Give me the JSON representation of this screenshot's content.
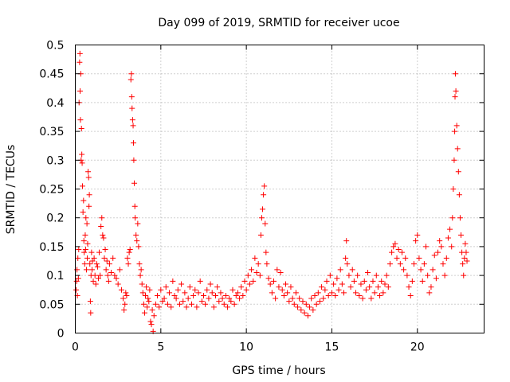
{
  "chart_data": {
    "type": "scatter",
    "title": "Day 099 of 2019, SRMTID for receiver ucoe",
    "xlabel": "GPS time / hours",
    "ylabel": "SRMTID / TECUs",
    "xlim": [
      0,
      23.9
    ],
    "ylim": [
      0,
      0.5
    ],
    "xticks": [
      0,
      5,
      10,
      15,
      20
    ],
    "xtick_labels": [
      "0",
      "5",
      "10",
      "15",
      "20"
    ],
    "yticks": [
      0,
      0.05,
      0.1,
      0.15,
      0.2,
      0.25,
      0.3,
      0.35,
      0.4,
      0.45,
      0.5
    ],
    "ytick_labels": [
      "0",
      "0.05",
      "0.1",
      "0.15",
      "0.2",
      "0.25",
      "0.3",
      "0.35",
      "0.4",
      "0.45",
      "0.5"
    ],
    "grid": true,
    "marker": "+",
    "color": "#ff0000",
    "series": [
      {
        "name": "SRMTID",
        "points": [
          [
            0.05,
            0.075
          ],
          [
            0.08,
            0.09
          ],
          [
            0.1,
            0.11
          ],
          [
            0.12,
            0.065
          ],
          [
            0.15,
            0.13
          ],
          [
            0.18,
            0.095
          ],
          [
            0.2,
            0.145
          ],
          [
            0.22,
            0.4
          ],
          [
            0.25,
            0.47
          ],
          [
            0.27,
            0.485
          ],
          [
            0.28,
            0.42
          ],
          [
            0.3,
            0.37
          ],
          [
            0.32,
            0.45
          ],
          [
            0.34,
            0.3
          ],
          [
            0.36,
            0.355
          ],
          [
            0.38,
            0.31
          ],
          [
            0.4,
            0.295
          ],
          [
            0.42,
            0.255
          ],
          [
            0.45,
            0.21
          ],
          [
            0.48,
            0.23
          ],
          [
            0.5,
            0.16
          ],
          [
            0.52,
            0.14
          ],
          [
            0.55,
            0.12
          ],
          [
            0.58,
            0.17
          ],
          [
            0.6,
            0.145
          ],
          [
            0.62,
            0.2
          ],
          [
            0.65,
            0.11
          ],
          [
            0.68,
            0.19
          ],
          [
            0.7,
            0.13
          ],
          [
            0.72,
            0.155
          ],
          [
            0.75,
            0.28
          ],
          [
            0.78,
            0.27
          ],
          [
            0.8,
            0.22
          ],
          [
            0.82,
            0.24
          ],
          [
            0.85,
            0.12
          ],
          [
            0.88,
            0.055
          ],
          [
            0.9,
            0.035
          ],
          [
            0.92,
            0.1
          ],
          [
            0.95,
            0.14
          ],
          [
            0.98,
            0.11
          ],
          [
            1.0,
            0.125
          ],
          [
            1.05,
            0.09
          ],
          [
            1.1,
            0.13
          ],
          [
            1.15,
            0.1
          ],
          [
            1.2,
            0.085
          ],
          [
            1.25,
            0.12
          ],
          [
            1.3,
            0.115
          ],
          [
            1.35,
            0.095
          ],
          [
            1.4,
            0.14
          ],
          [
            1.45,
            0.1
          ],
          [
            1.5,
            0.185
          ],
          [
            1.55,
            0.2
          ],
          [
            1.6,
            0.17
          ],
          [
            1.65,
            0.165
          ],
          [
            1.7,
            0.13
          ],
          [
            1.75,
            0.145
          ],
          [
            1.8,
            0.11
          ],
          [
            1.85,
            0.125
          ],
          [
            1.9,
            0.1
          ],
          [
            1.95,
            0.09
          ],
          [
            2.0,
            0.12
          ],
          [
            2.1,
            0.105
          ],
          [
            2.2,
            0.13
          ],
          [
            2.3,
            0.1
          ],
          [
            2.4,
            0.095
          ],
          [
            2.5,
            0.085
          ],
          [
            2.6,
            0.11
          ],
          [
            2.7,
            0.075
          ],
          [
            2.8,
            0.06
          ],
          [
            2.85,
            0.04
          ],
          [
            2.9,
            0.05
          ],
          [
            2.95,
            0.07
          ],
          [
            3.0,
            0.065
          ],
          [
            3.05,
            0.13
          ],
          [
            3.1,
            0.12
          ],
          [
            3.15,
            0.14
          ],
          [
            3.2,
            0.145
          ],
          [
            3.25,
            0.44
          ],
          [
            3.28,
            0.45
          ],
          [
            3.3,
            0.41
          ],
          [
            3.32,
            0.39
          ],
          [
            3.35,
            0.37
          ],
          [
            3.38,
            0.36
          ],
          [
            3.4,
            0.33
          ],
          [
            3.42,
            0.3
          ],
          [
            3.45,
            0.26
          ],
          [
            3.48,
            0.22
          ],
          [
            3.5,
            0.2
          ],
          [
            3.55,
            0.17
          ],
          [
            3.6,
            0.16
          ],
          [
            3.65,
            0.19
          ],
          [
            3.7,
            0.15
          ],
          [
            3.75,
            0.12
          ],
          [
            3.8,
            0.1
          ],
          [
            3.85,
            0.11
          ],
          [
            3.9,
            0.085
          ],
          [
            3.95,
            0.07
          ],
          [
            4.0,
            0.05
          ],
          [
            4.05,
            0.035
          ],
          [
            4.1,
            0.065
          ],
          [
            4.15,
            0.08
          ],
          [
            4.2,
            0.045
          ],
          [
            4.25,
            0.06
          ],
          [
            4.3,
            0.055
          ],
          [
            4.35,
            0.075
          ],
          [
            4.4,
            0.02
          ],
          [
            4.45,
            0.015
          ],
          [
            4.5,
            0.04
          ],
          [
            4.55,
            0.003
          ],
          [
            4.6,
            0.03
          ],
          [
            4.7,
            0.05
          ],
          [
            4.8,
            0.065
          ],
          [
            4.9,
            0.045
          ],
          [
            5.0,
            0.075
          ],
          [
            5.1,
            0.055
          ],
          [
            5.2,
            0.06
          ],
          [
            5.3,
            0.08
          ],
          [
            5.4,
            0.05
          ],
          [
            5.5,
            0.07
          ],
          [
            5.6,
            0.045
          ],
          [
            5.7,
            0.09
          ],
          [
            5.8,
            0.065
          ],
          [
            5.9,
            0.06
          ],
          [
            6.0,
            0.075
          ],
          [
            6.1,
            0.05
          ],
          [
            6.2,
            0.085
          ],
          [
            6.3,
            0.055
          ],
          [
            6.4,
            0.07
          ],
          [
            6.5,
            0.045
          ],
          [
            6.6,
            0.06
          ],
          [
            6.7,
            0.08
          ],
          [
            6.8,
            0.05
          ],
          [
            6.9,
            0.065
          ],
          [
            7.0,
            0.075
          ],
          [
            7.1,
            0.045
          ],
          [
            7.2,
            0.07
          ],
          [
            7.3,
            0.09
          ],
          [
            7.4,
            0.055
          ],
          [
            7.5,
            0.065
          ],
          [
            7.6,
            0.05
          ],
          [
            7.7,
            0.075
          ],
          [
            7.8,
            0.06
          ],
          [
            7.9,
            0.085
          ],
          [
            8.0,
            0.07
          ],
          [
            8.1,
            0.045
          ],
          [
            8.2,
            0.065
          ],
          [
            8.3,
            0.08
          ],
          [
            8.4,
            0.055
          ],
          [
            8.5,
            0.07
          ],
          [
            8.6,
            0.06
          ],
          [
            8.7,
            0.05
          ],
          [
            8.8,
            0.065
          ],
          [
            8.9,
            0.045
          ],
          [
            9.0,
            0.06
          ],
          [
            9.1,
            0.055
          ],
          [
            9.2,
            0.075
          ],
          [
            9.3,
            0.05
          ],
          [
            9.4,
            0.065
          ],
          [
            9.5,
            0.07
          ],
          [
            9.6,
            0.06
          ],
          [
            9.7,
            0.08
          ],
          [
            9.8,
            0.065
          ],
          [
            9.9,
            0.09
          ],
          [
            10.0,
            0.075
          ],
          [
            10.1,
            0.1
          ],
          [
            10.2,
            0.085
          ],
          [
            10.3,
            0.11
          ],
          [
            10.4,
            0.09
          ],
          [
            10.5,
            0.13
          ],
          [
            10.6,
            0.105
          ],
          [
            10.7,
            0.12
          ],
          [
            10.8,
            0.1
          ],
          [
            10.85,
            0.17
          ],
          [
            10.9,
            0.2
          ],
          [
            10.95,
            0.215
          ],
          [
            11.0,
            0.24
          ],
          [
            11.05,
            0.255
          ],
          [
            11.1,
            0.19
          ],
          [
            11.15,
            0.14
          ],
          [
            11.2,
            0.12
          ],
          [
            11.3,
            0.095
          ],
          [
            11.4,
            0.085
          ],
          [
            11.5,
            0.07
          ],
          [
            11.6,
            0.09
          ],
          [
            11.7,
            0.06
          ],
          [
            11.8,
            0.11
          ],
          [
            11.9,
            0.08
          ],
          [
            12.0,
            0.105
          ],
          [
            12.1,
            0.075
          ],
          [
            12.2,
            0.065
          ],
          [
            12.3,
            0.085
          ],
          [
            12.4,
            0.07
          ],
          [
            12.5,
            0.055
          ],
          [
            12.6,
            0.08
          ],
          [
            12.7,
            0.06
          ],
          [
            12.8,
            0.05
          ],
          [
            12.9,
            0.07
          ],
          [
            13.0,
            0.045
          ],
          [
            13.1,
            0.06
          ],
          [
            13.2,
            0.04
          ],
          [
            13.3,
            0.055
          ],
          [
            13.4,
            0.035
          ],
          [
            13.5,
            0.05
          ],
          [
            13.6,
            0.03
          ],
          [
            13.7,
            0.045
          ],
          [
            13.8,
            0.06
          ],
          [
            13.9,
            0.04
          ],
          [
            14.0,
            0.065
          ],
          [
            14.1,
            0.05
          ],
          [
            14.2,
            0.07
          ],
          [
            14.3,
            0.055
          ],
          [
            14.4,
            0.08
          ],
          [
            14.5,
            0.06
          ],
          [
            14.6,
            0.075
          ],
          [
            14.7,
            0.09
          ],
          [
            14.8,
            0.065
          ],
          [
            14.9,
            0.1
          ],
          [
            15.0,
            0.07
          ],
          [
            15.1,
            0.085
          ],
          [
            15.2,
            0.065
          ],
          [
            15.3,
            0.095
          ],
          [
            15.4,
            0.075
          ],
          [
            15.5,
            0.11
          ],
          [
            15.6,
            0.085
          ],
          [
            15.7,
            0.07
          ],
          [
            15.8,
            0.13
          ],
          [
            15.85,
            0.16
          ],
          [
            15.9,
            0.12
          ],
          [
            16.0,
            0.1
          ],
          [
            16.1,
            0.08
          ],
          [
            16.2,
            0.11
          ],
          [
            16.3,
            0.09
          ],
          [
            16.4,
            0.07
          ],
          [
            16.5,
            0.1
          ],
          [
            16.6,
            0.065
          ],
          [
            16.7,
            0.085
          ],
          [
            16.8,
            0.06
          ],
          [
            16.9,
            0.09
          ],
          [
            17.0,
            0.075
          ],
          [
            17.1,
            0.105
          ],
          [
            17.2,
            0.08
          ],
          [
            17.3,
            0.06
          ],
          [
            17.4,
            0.09
          ],
          [
            17.5,
            0.07
          ],
          [
            17.6,
            0.1
          ],
          [
            17.7,
            0.08
          ],
          [
            17.8,
            0.065
          ],
          [
            17.9,
            0.09
          ],
          [
            18.0,
            0.07
          ],
          [
            18.1,
            0.085
          ],
          [
            18.2,
            0.1
          ],
          [
            18.3,
            0.08
          ],
          [
            18.4,
            0.12
          ],
          [
            18.5,
            0.14
          ],
          [
            18.6,
            0.15
          ],
          [
            18.7,
            0.155
          ],
          [
            18.8,
            0.13
          ],
          [
            18.9,
            0.145
          ],
          [
            19.0,
            0.12
          ],
          [
            19.1,
            0.14
          ],
          [
            19.2,
            0.11
          ],
          [
            19.3,
            0.13
          ],
          [
            19.4,
            0.1
          ],
          [
            19.5,
            0.08
          ],
          [
            19.6,
            0.065
          ],
          [
            19.7,
            0.09
          ],
          [
            19.8,
            0.12
          ],
          [
            19.9,
            0.16
          ],
          [
            20.0,
            0.17
          ],
          [
            20.1,
            0.13
          ],
          [
            20.2,
            0.11
          ],
          [
            20.3,
            0.09
          ],
          [
            20.4,
            0.12
          ],
          [
            20.5,
            0.15
          ],
          [
            20.6,
            0.1
          ],
          [
            20.7,
            0.07
          ],
          [
            20.8,
            0.08
          ],
          [
            20.9,
            0.11
          ],
          [
            21.0,
            0.135
          ],
          [
            21.1,
            0.095
          ],
          [
            21.2,
            0.14
          ],
          [
            21.3,
            0.16
          ],
          [
            21.4,
            0.15
          ],
          [
            21.5,
            0.12
          ],
          [
            21.6,
            0.1
          ],
          [
            21.7,
            0.13
          ],
          [
            21.8,
            0.165
          ],
          [
            21.9,
            0.18
          ],
          [
            22.0,
            0.15
          ],
          [
            22.05,
            0.2
          ],
          [
            22.1,
            0.25
          ],
          [
            22.15,
            0.3
          ],
          [
            22.18,
            0.35
          ],
          [
            22.2,
            0.41
          ],
          [
            22.22,
            0.45
          ],
          [
            22.25,
            0.42
          ],
          [
            22.3,
            0.36
          ],
          [
            22.35,
            0.32
          ],
          [
            22.4,
            0.28
          ],
          [
            22.45,
            0.24
          ],
          [
            22.5,
            0.2
          ],
          [
            22.55,
            0.17
          ],
          [
            22.6,
            0.14
          ],
          [
            22.65,
            0.12
          ],
          [
            22.7,
            0.1
          ],
          [
            22.75,
            0.13
          ],
          [
            22.8,
            0.155
          ],
          [
            22.85,
            0.14
          ],
          [
            22.9,
            0.125
          ]
        ]
      }
    ]
  }
}
